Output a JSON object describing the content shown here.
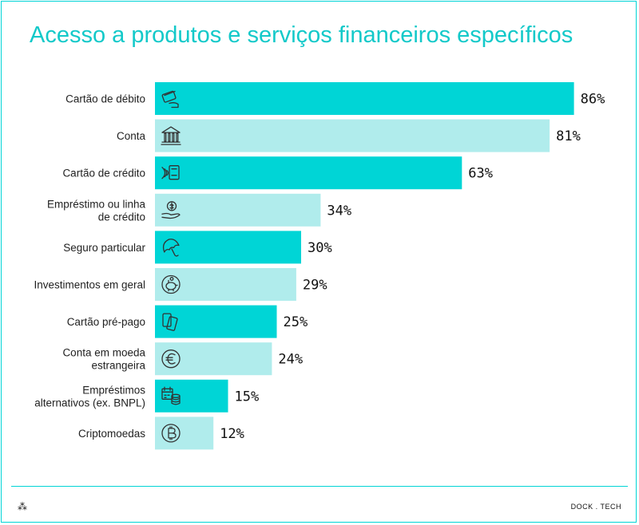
{
  "title": "Acesso a produtos e serviços financeiros específicos",
  "brand": "DOCK . TECH",
  "footer_symbol": "⁂",
  "colors": {
    "dark": "#00d5d6",
    "light": "#b0ecec",
    "accent": "#13c9c9",
    "icon": "#333333"
  },
  "chart_data": {
    "type": "bar",
    "orientation": "horizontal",
    "categories": [
      [
        "Cartão de débito"
      ],
      [
        "Conta"
      ],
      [
        "Cartão de crédito"
      ],
      [
        "Empréstimo ou linha",
        "de crédito"
      ],
      [
        "Seguro particular"
      ],
      [
        "Investimentos em geral"
      ],
      [
        "Cartão pré-pago"
      ],
      [
        "Conta em moeda",
        "estrangeira"
      ],
      [
        "Empréstimos",
        "alternativos (ex. BNPL)"
      ],
      [
        "Criptomoedas"
      ]
    ],
    "values": [
      86,
      81,
      63,
      34,
      30,
      29,
      25,
      24,
      15,
      12
    ],
    "value_labels": [
      "86%",
      "81%",
      "63%",
      "34%",
      "30%",
      "29%",
      "25%",
      "24%",
      "15%",
      "12%"
    ],
    "icons": [
      "card-hand-icon",
      "bank-icon",
      "contactless-card-icon",
      "money-hand-icon",
      "umbrella-icon",
      "piggy-bank-icon",
      "cards-icon",
      "euro-icon",
      "calendar-coins-icon",
      "bitcoin-icon"
    ],
    "xlim": [
      0,
      100
    ],
    "grid": false
  }
}
